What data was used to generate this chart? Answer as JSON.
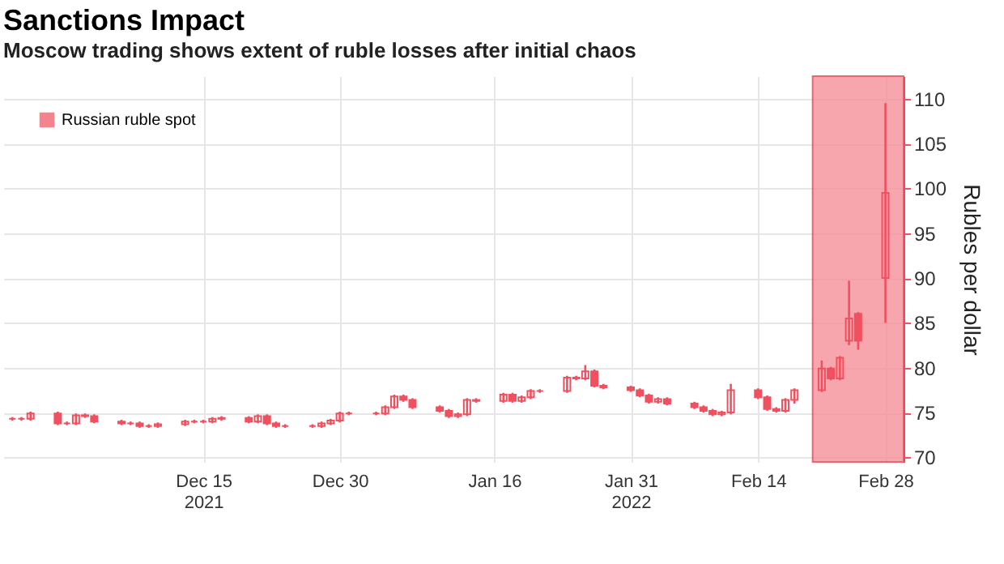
{
  "chart_data": {
    "type": "candlestick",
    "title": "Sanctions Impact",
    "subtitle": "Moscow trading shows extent of ruble losses after initial chaos",
    "ylabel": "Rubles per dollar",
    "xlim": [
      "2021-11-23",
      "2022-03-02"
    ],
    "xticks": [
      {
        "value": "2021-12-15",
        "label": "Dec 15\n2021"
      },
      {
        "value": "2021-12-30",
        "label": "Dec 30"
      },
      {
        "value": "2022-01-16",
        "label": "Jan 16"
      },
      {
        "value": "2022-01-31",
        "label": "Jan 31\n2022"
      },
      {
        "value": "2022-02-14",
        "label": "Feb 14"
      },
      {
        "value": "2022-02-28",
        "label": "Feb 28"
      }
    ],
    "ylim": [
      69.5,
      112.5
    ],
    "yticks": [
      70,
      75,
      80,
      85,
      90,
      95,
      100,
      105,
      110
    ],
    "grid": true,
    "legend": "top left",
    "bands": [
      {
        "axis": "x",
        "from": "2022-02-20",
        "to": "2022-03-02",
        "color": "#f7909b"
      }
    ],
    "x": [
      "2021-11-24",
      "2021-11-25",
      "2021-11-26",
      "2021-11-29",
      "2021-11-30",
      "2021-12-01",
      "2021-12-02",
      "2021-12-03",
      "2021-12-06",
      "2021-12-07",
      "2021-12-08",
      "2021-12-09",
      "2021-12-10",
      "2021-12-13",
      "2021-12-14",
      "2021-12-15",
      "2021-12-16",
      "2021-12-17",
      "2021-12-20",
      "2021-12-21",
      "2021-12-22",
      "2021-12-23",
      "2021-12-24",
      "2021-12-27",
      "2021-12-28",
      "2021-12-29",
      "2021-12-30",
      "2021-12-31",
      "2022-01-03",
      "2022-01-04",
      "2022-01-05",
      "2022-01-06",
      "2022-01-07",
      "2022-01-10",
      "2022-01-11",
      "2022-01-12",
      "2022-01-13",
      "2022-01-14",
      "2022-01-17",
      "2022-01-18",
      "2022-01-19",
      "2022-01-20",
      "2022-01-21",
      "2022-01-24",
      "2022-01-25",
      "2022-01-26",
      "2022-01-27",
      "2022-01-28",
      "2022-01-31",
      "2022-02-01",
      "2022-02-02",
      "2022-02-03",
      "2022-02-04",
      "2022-02-07",
      "2022-02-08",
      "2022-02-09",
      "2022-02-10",
      "2022-02-11",
      "2022-02-14",
      "2022-02-15",
      "2022-02-16",
      "2022-02-17",
      "2022-02-18",
      "2022-02-21",
      "2022-02-22",
      "2022-02-23",
      "2022-02-24",
      "2022-02-25",
      "2022-02-28"
    ],
    "series": [
      {
        "name": "Russian ruble spot",
        "color": "#f0505f",
        "ohlc": [
          [
            74.3,
            74.5,
            74.1,
            74.3
          ],
          [
            74.3,
            74.5,
            74.1,
            74.3
          ],
          [
            74.3,
            75.1,
            74.1,
            74.9
          ],
          [
            74.9,
            75.1,
            73.6,
            73.8
          ],
          [
            73.8,
            74.0,
            73.6,
            73.8
          ],
          [
            73.8,
            74.9,
            73.6,
            74.7
          ],
          [
            74.7,
            74.9,
            74.4,
            74.6
          ],
          [
            74.6,
            74.8,
            73.8,
            74.0
          ],
          [
            74.0,
            74.2,
            73.6,
            73.8
          ],
          [
            73.8,
            74.0,
            73.6,
            73.8
          ],
          [
            73.8,
            74.0,
            73.3,
            73.5
          ],
          [
            73.5,
            73.7,
            73.3,
            73.5
          ],
          [
            73.5,
            73.9,
            73.3,
            73.7
          ],
          [
            73.7,
            74.2,
            73.5,
            74.0
          ],
          [
            74.0,
            74.2,
            73.8,
            74.0
          ],
          [
            74.0,
            74.2,
            73.8,
            74.0
          ],
          [
            74.0,
            74.5,
            73.8,
            74.3
          ],
          [
            74.3,
            74.6,
            74.1,
            74.4
          ],
          [
            74.4,
            74.6,
            73.8,
            74.0
          ],
          [
            74.0,
            74.8,
            73.8,
            74.6
          ],
          [
            74.6,
            74.8,
            73.6,
            73.8
          ],
          [
            73.8,
            74.0,
            73.3,
            73.5
          ],
          [
            73.5,
            73.7,
            73.3,
            73.5
          ],
          [
            73.5,
            73.7,
            73.3,
            73.5
          ],
          [
            73.5,
            74.0,
            73.3,
            73.8
          ],
          [
            73.8,
            74.3,
            73.6,
            74.1
          ],
          [
            74.1,
            75.1,
            73.9,
            74.9
          ],
          [
            74.9,
            75.1,
            74.7,
            74.9
          ],
          [
            74.9,
            75.1,
            74.7,
            74.9
          ],
          [
            74.9,
            75.8,
            74.7,
            75.6
          ],
          [
            75.6,
            77.0,
            75.4,
            76.8
          ],
          [
            76.8,
            77.0,
            76.2,
            76.4
          ],
          [
            76.4,
            76.6,
            75.4,
            75.6
          ],
          [
            75.6,
            75.8,
            75.0,
            75.2
          ],
          [
            75.2,
            75.4,
            74.4,
            74.6
          ],
          [
            74.6,
            75.0,
            74.4,
            74.8
          ],
          [
            74.8,
            76.6,
            74.6,
            76.4
          ],
          [
            76.4,
            76.6,
            76.1,
            76.3
          ],
          [
            76.3,
            77.2,
            76.1,
            77.0
          ],
          [
            77.0,
            77.2,
            76.1,
            76.3
          ],
          [
            76.3,
            76.9,
            76.1,
            76.7
          ],
          [
            76.7,
            77.6,
            76.5,
            77.4
          ],
          [
            77.4,
            77.6,
            77.2,
            77.4
          ],
          [
            77.4,
            79.1,
            77.2,
            78.9
          ],
          [
            78.9,
            79.1,
            78.6,
            78.8
          ],
          [
            78.8,
            80.3,
            78.6,
            79.6
          ],
          [
            79.6,
            79.8,
            77.8,
            78.0
          ],
          [
            78.0,
            78.2,
            77.6,
            77.8
          ],
          [
            77.8,
            78.0,
            77.3,
            77.5
          ],
          [
            77.5,
            77.7,
            76.7,
            76.9
          ],
          [
            76.9,
            77.1,
            76.0,
            76.2
          ],
          [
            76.2,
            76.7,
            76.0,
            76.5
          ],
          [
            76.5,
            76.7,
            75.8,
            76.0
          ],
          [
            76.0,
            76.2,
            75.4,
            75.6
          ],
          [
            75.6,
            75.8,
            75.0,
            75.2
          ],
          [
            75.2,
            75.4,
            74.6,
            74.8
          ],
          [
            74.8,
            75.2,
            74.6,
            75.0
          ],
          [
            75.0,
            78.2,
            74.8,
            77.5
          ],
          [
            77.5,
            77.7,
            76.5,
            76.7
          ],
          [
            76.7,
            76.9,
            75.2,
            75.4
          ],
          [
            75.4,
            75.6,
            75.0,
            75.2
          ],
          [
            75.2,
            76.6,
            75.0,
            76.4
          ],
          [
            76.4,
            77.7,
            76.0,
            77.5
          ],
          [
            77.5,
            80.8,
            77.3,
            79.9
          ],
          [
            79.9,
            80.1,
            78.6,
            78.8
          ],
          [
            78.8,
            81.3,
            78.6,
            81.1
          ],
          [
            83.0,
            89.7,
            82.5,
            85.5
          ],
          [
            86.0,
            86.2,
            82.0,
            83.0
          ],
          [
            90.0,
            109.5,
            85.0,
            99.5
          ]
        ]
      }
    ]
  }
}
